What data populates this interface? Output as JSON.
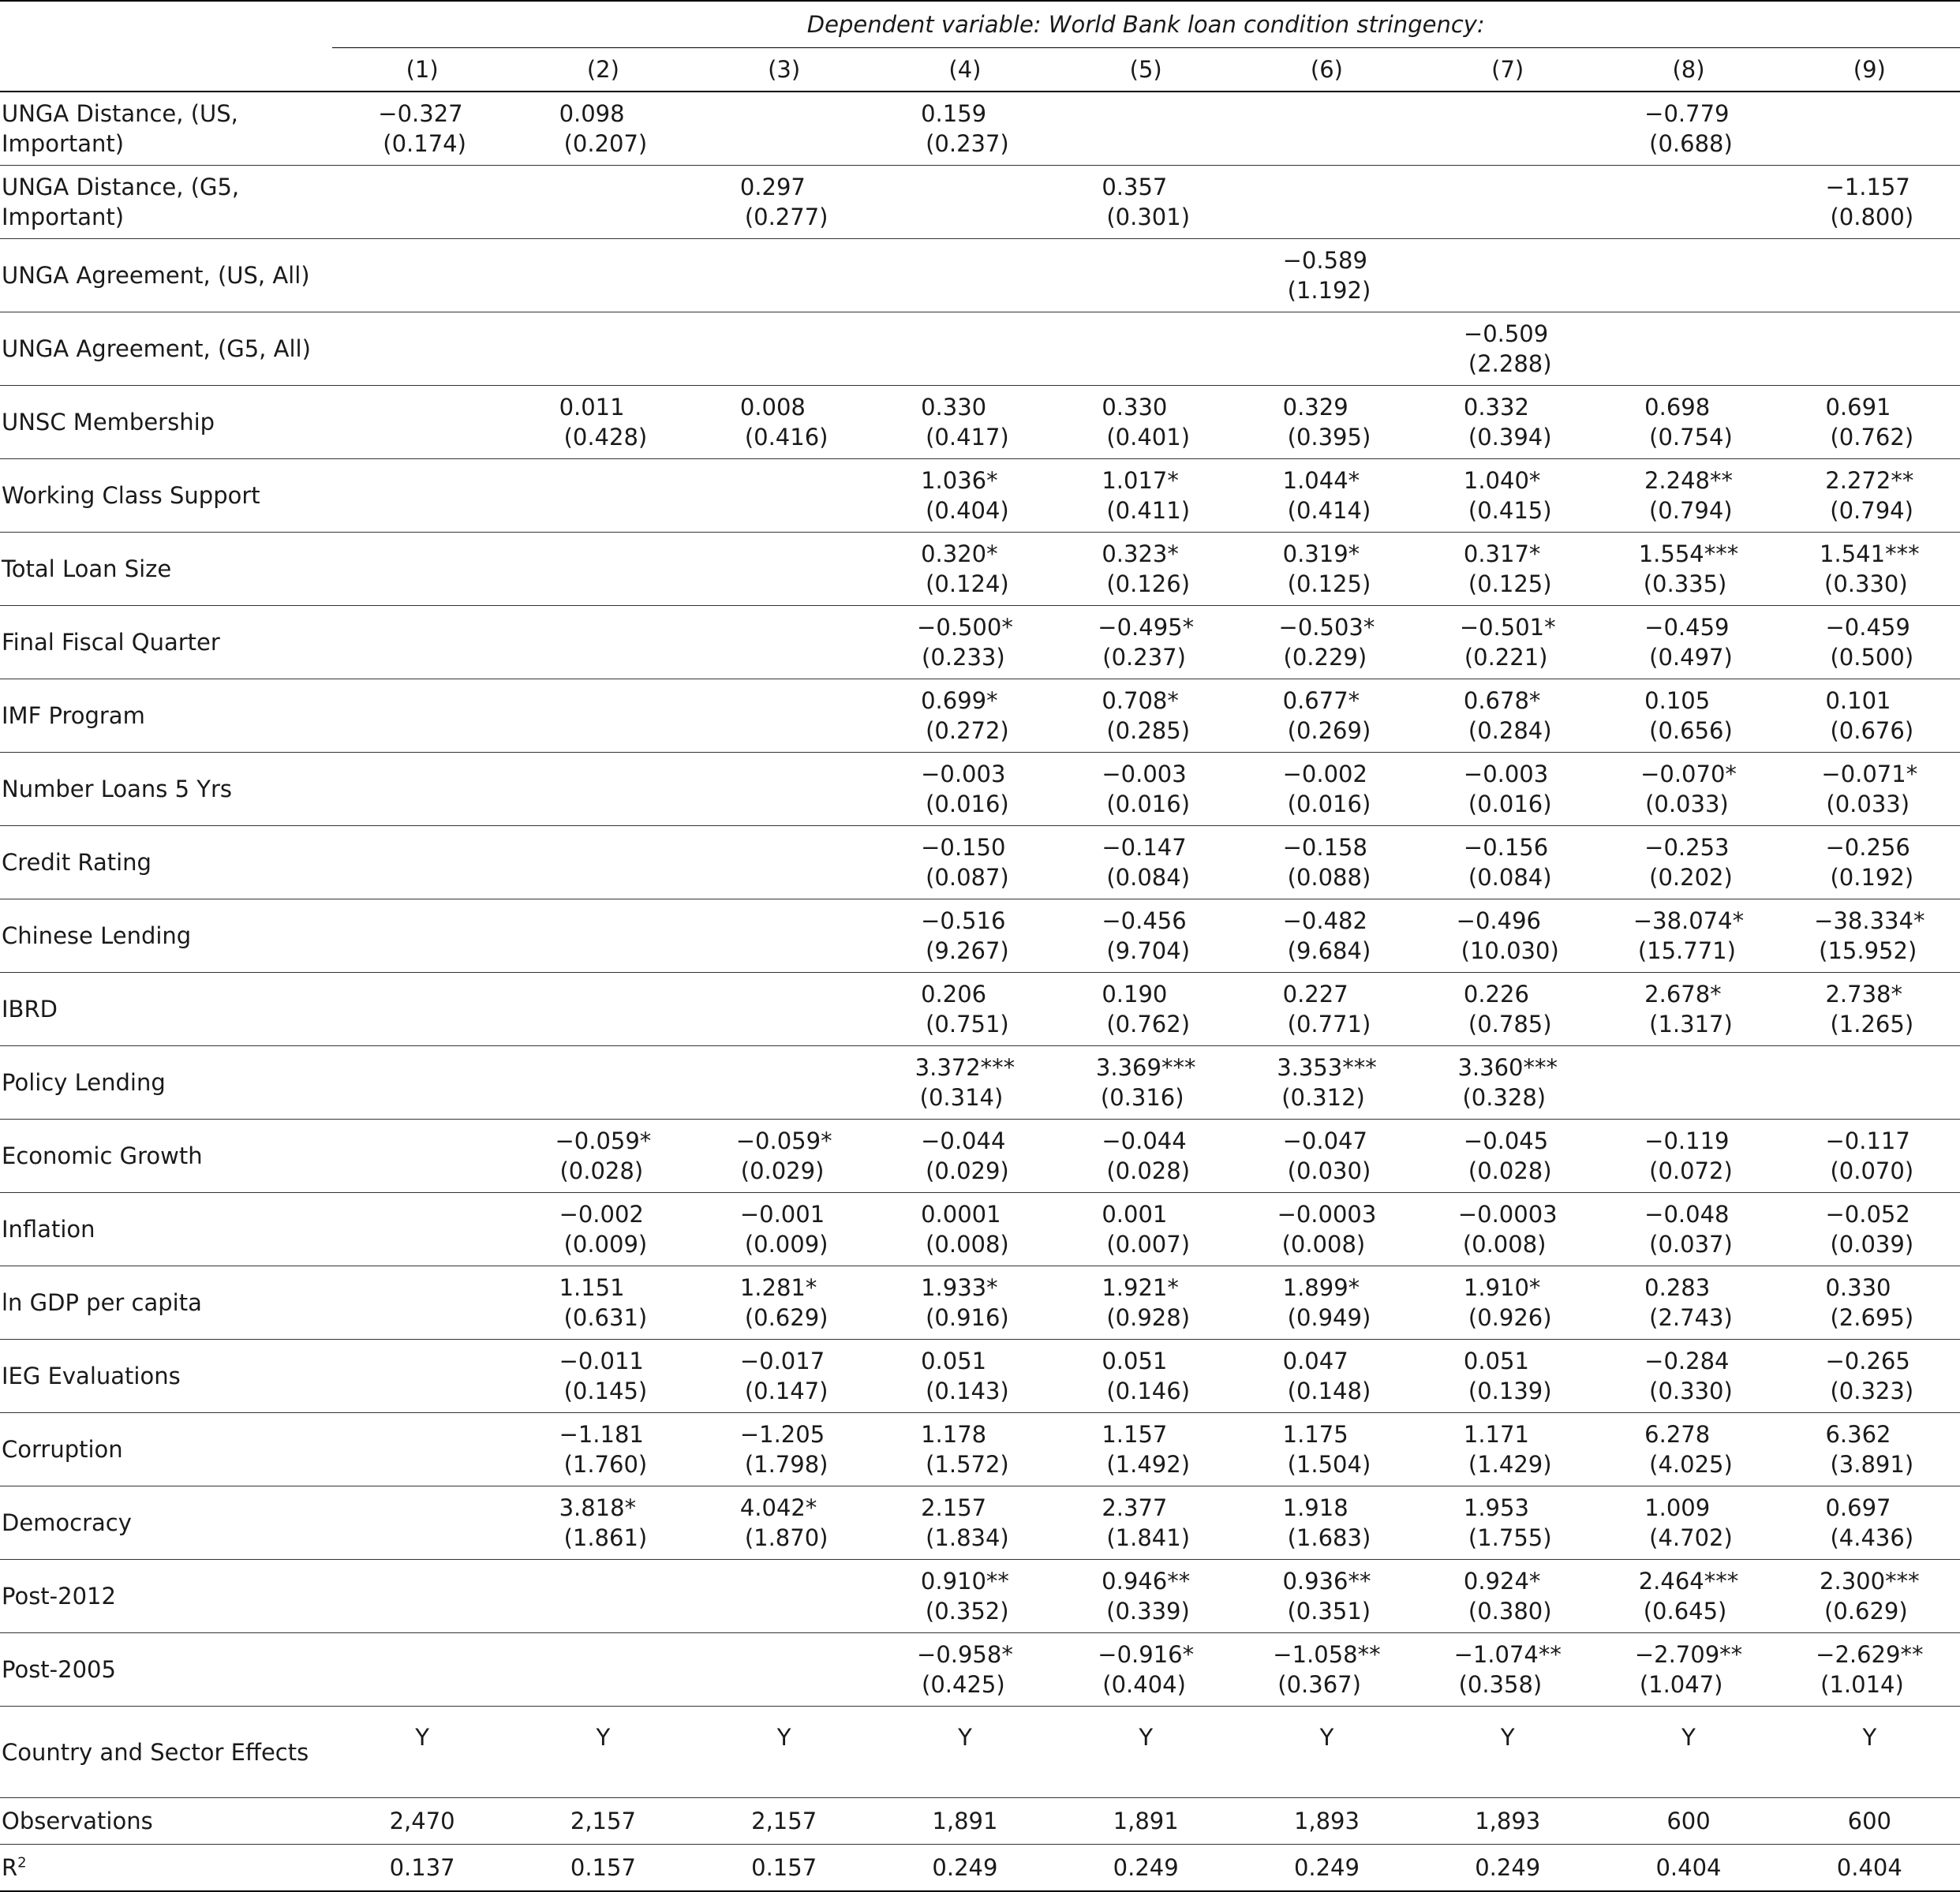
{
  "table": {
    "dependent_variable": "Dependent variable: World Bank loan condition stringency:",
    "columns": [
      "(1)",
      "(2)",
      "(3)",
      "(4)",
      "(5)",
      "(6)",
      "(7)",
      "(8)",
      "(9)"
    ],
    "rows": [
      {
        "label": "UNGA Distance, (US, Important)",
        "cells": [
          {
            "c": "−0.327",
            "s": "(0.174)"
          },
          {
            "c": "0.098",
            "s": "(0.207)"
          },
          {
            "c": "",
            "s": ""
          },
          {
            "c": "0.159",
            "s": "(0.237)"
          },
          {
            "c": "",
            "s": ""
          },
          {
            "c": "",
            "s": ""
          },
          {
            "c": "",
            "s": ""
          },
          {
            "c": "−0.779",
            "s": "(0.688)"
          },
          {
            "c": "",
            "s": ""
          }
        ]
      },
      {
        "label": "UNGA Distance, (G5, Important)",
        "cells": [
          {
            "c": "",
            "s": ""
          },
          {
            "c": "",
            "s": ""
          },
          {
            "c": "0.297",
            "s": "(0.277)"
          },
          {
            "c": "",
            "s": ""
          },
          {
            "c": "0.357",
            "s": "(0.301)"
          },
          {
            "c": "",
            "s": ""
          },
          {
            "c": "",
            "s": ""
          },
          {
            "c": "",
            "s": ""
          },
          {
            "c": "−1.157",
            "s": "(0.800)"
          }
        ]
      },
      {
        "label": "UNGA Agreement, (US, All)",
        "cells": [
          {
            "c": "",
            "s": ""
          },
          {
            "c": "",
            "s": ""
          },
          {
            "c": "",
            "s": ""
          },
          {
            "c": "",
            "s": ""
          },
          {
            "c": "",
            "s": ""
          },
          {
            "c": "−0.589",
            "s": "(1.192)"
          },
          {
            "c": "",
            "s": ""
          },
          {
            "c": "",
            "s": ""
          },
          {
            "c": "",
            "s": ""
          }
        ]
      },
      {
        "label": "UNGA Agreement, (G5, All)",
        "cells": [
          {
            "c": "",
            "s": ""
          },
          {
            "c": "",
            "s": ""
          },
          {
            "c": "",
            "s": ""
          },
          {
            "c": "",
            "s": ""
          },
          {
            "c": "",
            "s": ""
          },
          {
            "c": "",
            "s": ""
          },
          {
            "c": "−0.509",
            "s": "(2.288)"
          },
          {
            "c": "",
            "s": ""
          },
          {
            "c": "",
            "s": ""
          }
        ]
      },
      {
        "label": "UNSC Membership",
        "cells": [
          {
            "c": "",
            "s": ""
          },
          {
            "c": "0.011",
            "s": "(0.428)"
          },
          {
            "c": "0.008",
            "s": "(0.416)"
          },
          {
            "c": "0.330",
            "s": "(0.417)"
          },
          {
            "c": "0.330",
            "s": "(0.401)"
          },
          {
            "c": "0.329",
            "s": "(0.395)"
          },
          {
            "c": "0.332",
            "s": "(0.394)"
          },
          {
            "c": "0.698",
            "s": "(0.754)"
          },
          {
            "c": "0.691",
            "s": "(0.762)"
          }
        ]
      },
      {
        "label": "Working Class Support",
        "cells": [
          {
            "c": "",
            "s": ""
          },
          {
            "c": "",
            "s": ""
          },
          {
            "c": "",
            "s": ""
          },
          {
            "c": "1.036*",
            "s": "(0.404)"
          },
          {
            "c": "1.017*",
            "s": "(0.411)"
          },
          {
            "c": "1.044*",
            "s": "(0.414)"
          },
          {
            "c": "1.040*",
            "s": "(0.415)"
          },
          {
            "c": "2.248**",
            "s": "(0.794)"
          },
          {
            "c": "2.272**",
            "s": "(0.794)"
          }
        ]
      },
      {
        "label": "Total Loan Size",
        "cells": [
          {
            "c": "",
            "s": ""
          },
          {
            "c": "",
            "s": ""
          },
          {
            "c": "",
            "s": ""
          },
          {
            "c": "0.320*",
            "s": "(0.124)"
          },
          {
            "c": "0.323*",
            "s": "(0.126)"
          },
          {
            "c": "0.319*",
            "s": "(0.125)"
          },
          {
            "c": "0.317*",
            "s": "(0.125)"
          },
          {
            "c": "1.554***",
            "s": "(0.335)"
          },
          {
            "c": "1.541***",
            "s": "(0.330)"
          }
        ]
      },
      {
        "label": "Final Fiscal Quarter",
        "cells": [
          {
            "c": "",
            "s": ""
          },
          {
            "c": "",
            "s": ""
          },
          {
            "c": "",
            "s": ""
          },
          {
            "c": "−0.500*",
            "s": "(0.233)"
          },
          {
            "c": "−0.495*",
            "s": "(0.237)"
          },
          {
            "c": "−0.503*",
            "s": "(0.229)"
          },
          {
            "c": "−0.501*",
            "s": "(0.221)"
          },
          {
            "c": "−0.459",
            "s": "(0.497)"
          },
          {
            "c": "−0.459",
            "s": "(0.500)"
          }
        ]
      },
      {
        "label": "IMF Program",
        "cells": [
          {
            "c": "",
            "s": ""
          },
          {
            "c": "",
            "s": ""
          },
          {
            "c": "",
            "s": ""
          },
          {
            "c": "0.699*",
            "s": "(0.272)"
          },
          {
            "c": "0.708*",
            "s": "(0.285)"
          },
          {
            "c": "0.677*",
            "s": "(0.269)"
          },
          {
            "c": "0.678*",
            "s": "(0.284)"
          },
          {
            "c": "0.105",
            "s": "(0.656)"
          },
          {
            "c": "0.101",
            "s": "(0.676)"
          }
        ]
      },
      {
        "label": "Number Loans 5 Yrs",
        "cells": [
          {
            "c": "",
            "s": ""
          },
          {
            "c": "",
            "s": ""
          },
          {
            "c": "",
            "s": ""
          },
          {
            "c": "−0.003",
            "s": "(0.016)"
          },
          {
            "c": "−0.003",
            "s": "(0.016)"
          },
          {
            "c": "−0.002",
            "s": "(0.016)"
          },
          {
            "c": "−0.003",
            "s": "(0.016)"
          },
          {
            "c": "−0.070*",
            "s": "(0.033)"
          },
          {
            "c": "−0.071*",
            "s": "(0.033)"
          }
        ]
      },
      {
        "label": "Credit Rating",
        "cells": [
          {
            "c": "",
            "s": ""
          },
          {
            "c": "",
            "s": ""
          },
          {
            "c": "",
            "s": ""
          },
          {
            "c": "−0.150",
            "s": "(0.087)"
          },
          {
            "c": "−0.147",
            "s": "(0.084)"
          },
          {
            "c": "−0.158",
            "s": "(0.088)"
          },
          {
            "c": "−0.156",
            "s": "(0.084)"
          },
          {
            "c": "−0.253",
            "s": "(0.202)"
          },
          {
            "c": "−0.256",
            "s": "(0.192)"
          }
        ]
      },
      {
        "label": "Chinese Lending",
        "cells": [
          {
            "c": "",
            "s": ""
          },
          {
            "c": "",
            "s": ""
          },
          {
            "c": "",
            "s": ""
          },
          {
            "c": "−0.516",
            "s": "(9.267)"
          },
          {
            "c": "−0.456",
            "s": "(9.704)"
          },
          {
            "c": "−0.482",
            "s": "(9.684)"
          },
          {
            "c": "−0.496",
            "s": "(10.030)"
          },
          {
            "c": "−38.074*",
            "s": "(15.771)"
          },
          {
            "c": "−38.334*",
            "s": "(15.952)"
          }
        ]
      },
      {
        "label": "IBRD",
        "cells": [
          {
            "c": "",
            "s": ""
          },
          {
            "c": "",
            "s": ""
          },
          {
            "c": "",
            "s": ""
          },
          {
            "c": "0.206",
            "s": "(0.751)"
          },
          {
            "c": "0.190",
            "s": "(0.762)"
          },
          {
            "c": "0.227",
            "s": "(0.771)"
          },
          {
            "c": "0.226",
            "s": "(0.785)"
          },
          {
            "c": "2.678*",
            "s": "(1.317)"
          },
          {
            "c": "2.738*",
            "s": "(1.265)"
          }
        ]
      },
      {
        "label": "Policy Lending",
        "cells": [
          {
            "c": "",
            "s": ""
          },
          {
            "c": "",
            "s": ""
          },
          {
            "c": "",
            "s": ""
          },
          {
            "c": "3.372***",
            "s": "(0.314)"
          },
          {
            "c": "3.369***",
            "s": "(0.316)"
          },
          {
            "c": "3.353***",
            "s": "(0.312)"
          },
          {
            "c": "3.360***",
            "s": "(0.328)"
          },
          {
            "c": "",
            "s": ""
          },
          {
            "c": "",
            "s": ""
          }
        ]
      },
      {
        "label": "Economic Growth",
        "cells": [
          {
            "c": "",
            "s": ""
          },
          {
            "c": "−0.059*",
            "s": "(0.028)"
          },
          {
            "c": "−0.059*",
            "s": "(0.029)"
          },
          {
            "c": "−0.044",
            "s": "(0.029)"
          },
          {
            "c": "−0.044",
            "s": "(0.028)"
          },
          {
            "c": "−0.047",
            "s": "(0.030)"
          },
          {
            "c": "−0.045",
            "s": "(0.028)"
          },
          {
            "c": "−0.119",
            "s": "(0.072)"
          },
          {
            "c": "−0.117",
            "s": "(0.070)"
          }
        ]
      },
      {
        "label": "Inflation",
        "cells": [
          {
            "c": "",
            "s": ""
          },
          {
            "c": "−0.002",
            "s": "(0.009)"
          },
          {
            "c": "−0.001",
            "s": "(0.009)"
          },
          {
            "c": "0.0001",
            "s": "(0.008)"
          },
          {
            "c": "0.001",
            "s": "(0.007)"
          },
          {
            "c": "−0.0003",
            "s": "(0.008)"
          },
          {
            "c": "−0.0003",
            "s": "(0.008)"
          },
          {
            "c": "−0.048",
            "s": "(0.037)"
          },
          {
            "c": "−0.052",
            "s": "(0.039)"
          }
        ]
      },
      {
        "label": "ln GDP per capita",
        "cells": [
          {
            "c": "",
            "s": ""
          },
          {
            "c": "1.151",
            "s": "(0.631)"
          },
          {
            "c": "1.281*",
            "s": "(0.629)"
          },
          {
            "c": "1.933*",
            "s": "(0.916)"
          },
          {
            "c": "1.921*",
            "s": "(0.928)"
          },
          {
            "c": "1.899*",
            "s": "(0.949)"
          },
          {
            "c": "1.910*",
            "s": "(0.926)"
          },
          {
            "c": "0.283",
            "s": "(2.743)"
          },
          {
            "c": "0.330",
            "s": "(2.695)"
          }
        ]
      },
      {
        "label": "IEG Evaluations",
        "cells": [
          {
            "c": "",
            "s": ""
          },
          {
            "c": "−0.011",
            "s": "(0.145)"
          },
          {
            "c": "−0.017",
            "s": "(0.147)"
          },
          {
            "c": "0.051",
            "s": "(0.143)"
          },
          {
            "c": "0.051",
            "s": "(0.146)"
          },
          {
            "c": "0.047",
            "s": "(0.148)"
          },
          {
            "c": "0.051",
            "s": "(0.139)"
          },
          {
            "c": "−0.284",
            "s": "(0.330)"
          },
          {
            "c": "−0.265",
            "s": "(0.323)"
          }
        ]
      },
      {
        "label": "Corruption",
        "cells": [
          {
            "c": "",
            "s": ""
          },
          {
            "c": "−1.181",
            "s": "(1.760)"
          },
          {
            "c": "−1.205",
            "s": "(1.798)"
          },
          {
            "c": "1.178",
            "s": "(1.572)"
          },
          {
            "c": "1.157",
            "s": "(1.492)"
          },
          {
            "c": "1.175",
            "s": "(1.504)"
          },
          {
            "c": "1.171",
            "s": "(1.429)"
          },
          {
            "c": "6.278",
            "s": "(4.025)"
          },
          {
            "c": "6.362",
            "s": "(3.891)"
          }
        ]
      },
      {
        "label": "Democracy",
        "cells": [
          {
            "c": "",
            "s": ""
          },
          {
            "c": "3.818*",
            "s": "(1.861)"
          },
          {
            "c": "4.042*",
            "s": "(1.870)"
          },
          {
            "c": "2.157",
            "s": "(1.834)"
          },
          {
            "c": "2.377",
            "s": "(1.841)"
          },
          {
            "c": "1.918",
            "s": "(1.683)"
          },
          {
            "c": "1.953",
            "s": "(1.755)"
          },
          {
            "c": "1.009",
            "s": "(4.702)"
          },
          {
            "c": "0.697",
            "s": "(4.436)"
          }
        ]
      },
      {
        "label": "Post-2012",
        "cells": [
          {
            "c": "",
            "s": ""
          },
          {
            "c": "",
            "s": ""
          },
          {
            "c": "",
            "s": ""
          },
          {
            "c": "0.910**",
            "s": "(0.352)"
          },
          {
            "c": "0.946**",
            "s": "(0.339)"
          },
          {
            "c": "0.936**",
            "s": "(0.351)"
          },
          {
            "c": "0.924*",
            "s": "(0.380)"
          },
          {
            "c": "2.464***",
            "s": "(0.645)"
          },
          {
            "c": "2.300***",
            "s": "(0.629)"
          }
        ]
      },
      {
        "label": "Post-2005",
        "cells": [
          {
            "c": "",
            "s": ""
          },
          {
            "c": "",
            "s": ""
          },
          {
            "c": "",
            "s": ""
          },
          {
            "c": "−0.958*",
            "s": "(0.425)"
          },
          {
            "c": "−0.916*",
            "s": "(0.404)"
          },
          {
            "c": "−1.058**",
            "s": "(0.367)"
          },
          {
            "c": "−1.074**",
            "s": "(0.358)"
          },
          {
            "c": "−2.709**",
            "s": "(1.047)"
          },
          {
            "c": "−2.629**",
            "s": "(1.014)"
          }
        ]
      }
    ],
    "effects": {
      "label": "Country and Sector Effects",
      "values": [
        "Y",
        "Y",
        "Y",
        "Y",
        "Y",
        "Y",
        "Y",
        "Y",
        "Y"
      ]
    },
    "observations": {
      "label": "Observations",
      "values": [
        "2,470",
        "2,157",
        "2,157",
        "1,891",
        "1,891",
        "1,893",
        "1,893",
        "600",
        "600"
      ]
    },
    "r2": {
      "label_base": "R",
      "label_sup": "2",
      "values": [
        "0.137",
        "0.157",
        "0.157",
        "0.249",
        "0.249",
        "0.249",
        "0.249",
        "0.404",
        "0.404"
      ]
    }
  }
}
